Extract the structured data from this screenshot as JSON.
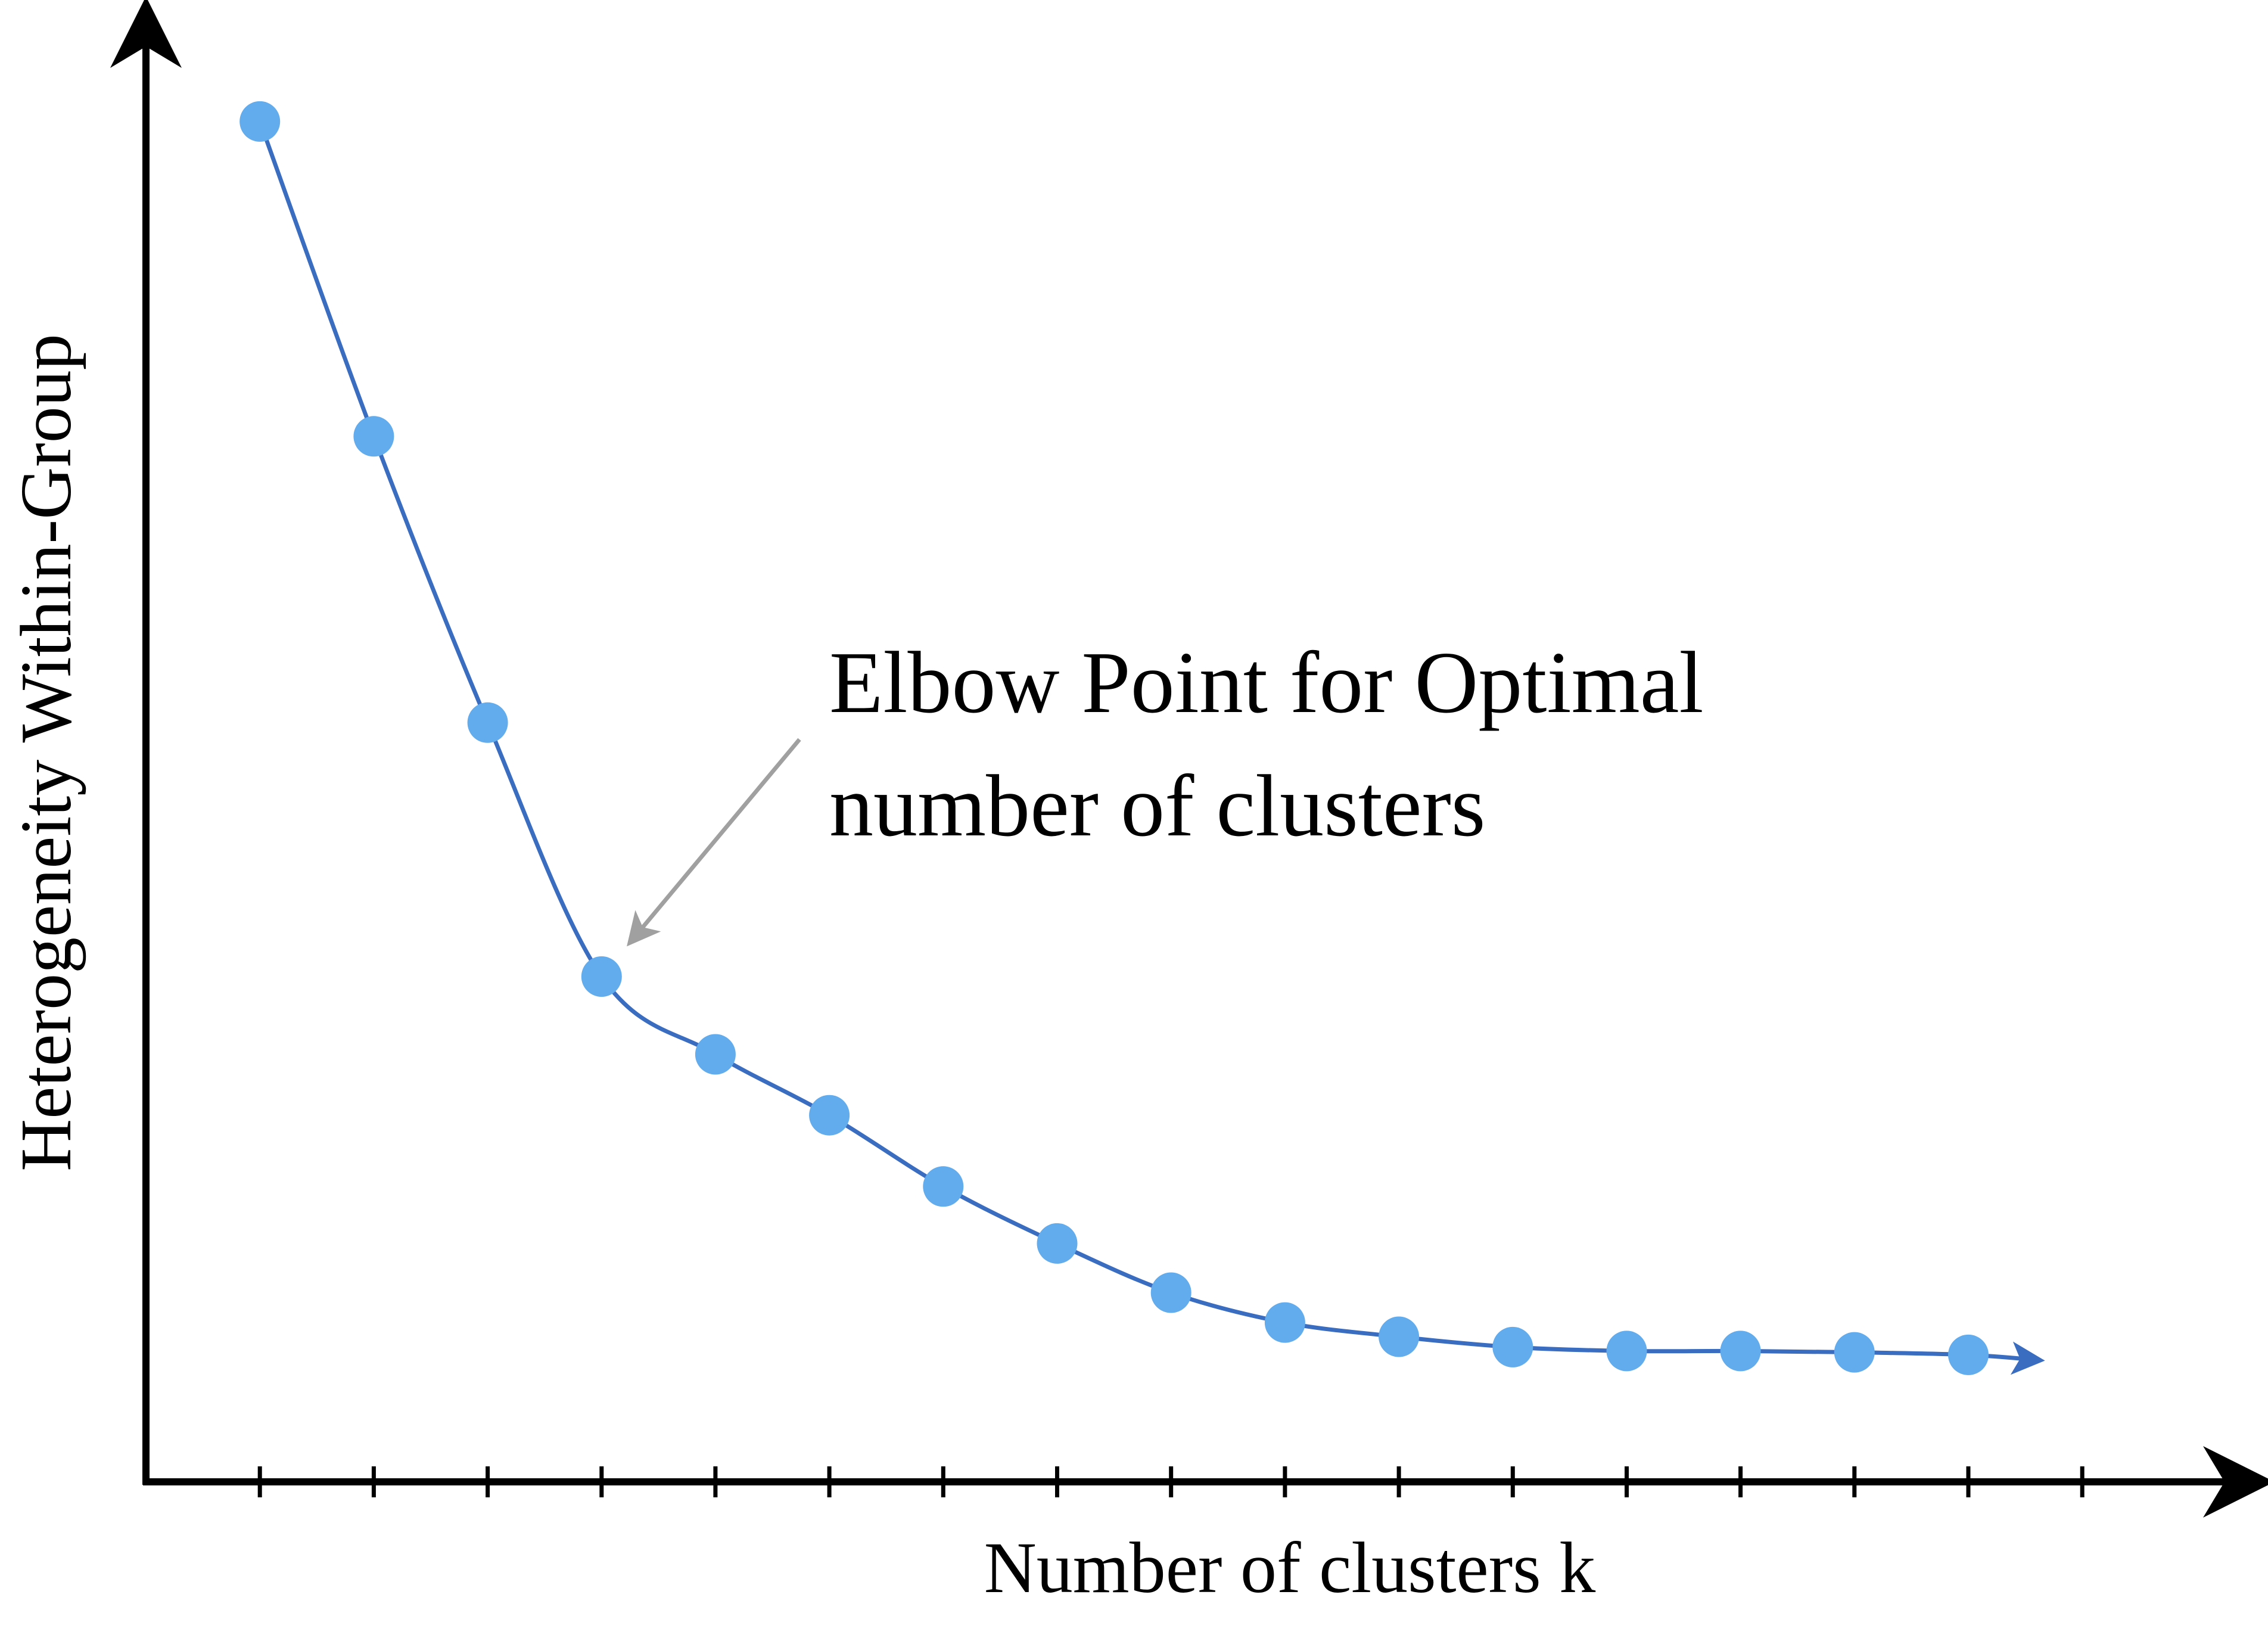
{
  "chart_data": {
    "type": "line",
    "title": "",
    "xlabel": "Number of clusters k",
    "ylabel": "Heterogeneity Within-Group",
    "x": [
      1,
      2,
      3,
      4,
      5,
      6,
      7,
      8,
      9,
      10,
      11,
      12,
      13,
      14,
      15,
      16
    ],
    "values": [
      100,
      75.7,
      53.6,
      34.0,
      28.0,
      23.3,
      17.8,
      13.4,
      9.6,
      7.3,
      6.2,
      5.4,
      5.1,
      5.1,
      5.0,
      4.8
    ],
    "xlim": [
      0,
      18.5
    ],
    "ylim": [
      -5,
      108
    ],
    "grid": false,
    "legend": "none",
    "annotation": {
      "text_line1": "Elbow Point for Optimal",
      "text_line2": "number of clusters",
      "target_x": 4,
      "target_y": 34.0
    },
    "colors": {
      "line": "#3a6cc0",
      "marker": "#62abec",
      "axis": "#000000",
      "arrow": "#a0a0a0"
    }
  }
}
